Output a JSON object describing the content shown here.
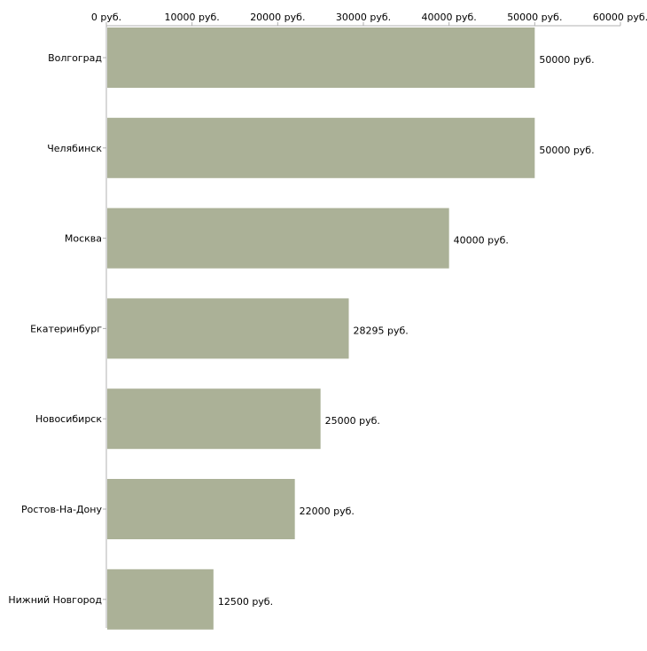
{
  "colors": {
    "bar": "#abb197",
    "axis": "#b0b0b0",
    "text": "#000000"
  },
  "chart_data": {
    "type": "bar",
    "orientation": "horizontal",
    "title": "",
    "xlabel": "",
    "ylabel": "",
    "xlim": [
      0,
      60000
    ],
    "grid": false,
    "x_axis_position": "top",
    "ticks": [
      {
        "value": 0,
        "label": "0 руб."
      },
      {
        "value": 10000,
        "label": "10000 руб."
      },
      {
        "value": 20000,
        "label": "20000 руб."
      },
      {
        "value": 30000,
        "label": "30000 руб."
      },
      {
        "value": 40000,
        "label": "40000 руб."
      },
      {
        "value": 50000,
        "label": "50000 руб."
      },
      {
        "value": 60000,
        "label": "60000 руб."
      }
    ],
    "categories": [
      "Волгоград",
      "Челябинск",
      "Москва",
      "Екатеринбург",
      "Новосибирск",
      "Ростов-На-Дону",
      "Нижний Новгород"
    ],
    "values": [
      50000,
      50000,
      40000,
      28295,
      25000,
      22000,
      12500
    ],
    "value_labels": [
      "50000 руб.",
      "50000 руб.",
      "40000 руб.",
      "28295 руб.",
      "25000 руб.",
      "22000 руб.",
      "12500 руб."
    ]
  }
}
